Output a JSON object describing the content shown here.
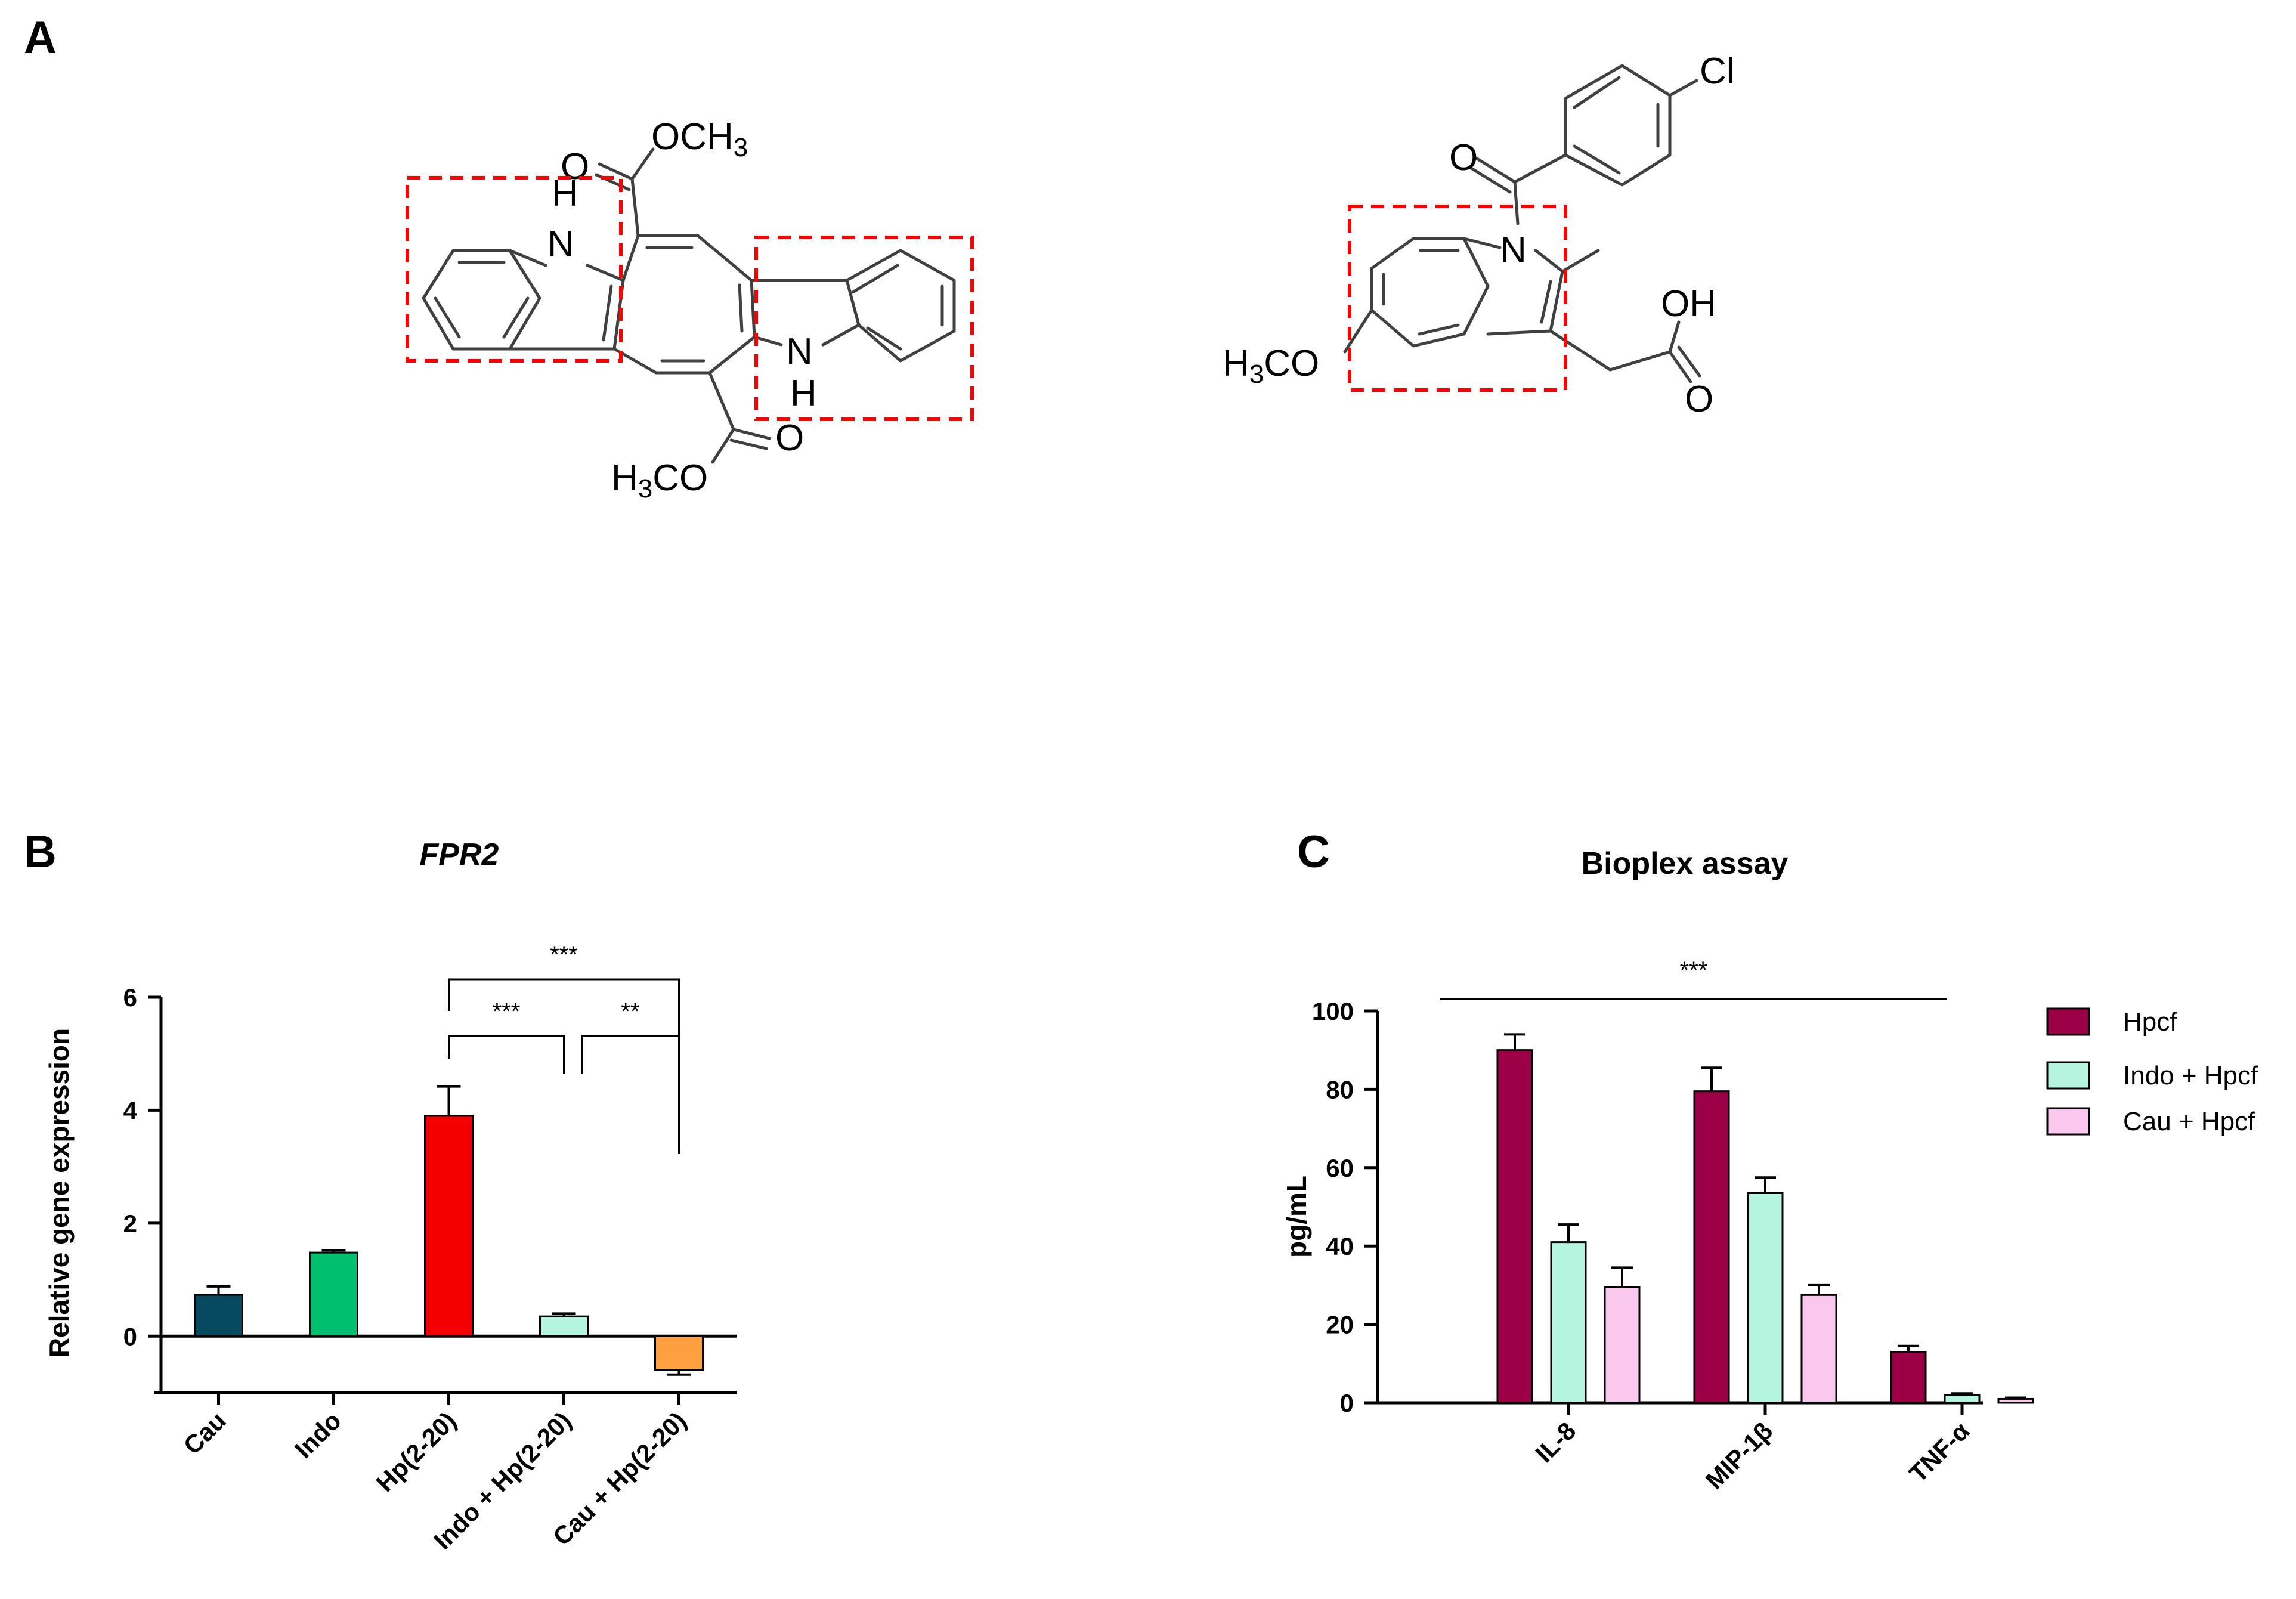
{
  "panels": {
    "a": "A",
    "b": "B",
    "c": "C"
  },
  "molecules": {
    "caulerpin": {
      "atoms": {
        "nh_top": "H",
        "nh_top_n": "N",
        "nh_bot_n": "N",
        "nh_bot": "H",
        "o_top": "O",
        "och3_top": "OCH3",
        "o_bot": "O",
        "h3co_bot": "H3CO"
      }
    },
    "indomethacin": {
      "atoms": {
        "cl": "Cl",
        "o_carbonyl": "O",
        "n": "N",
        "oh": "OH",
        "o_acid": "O",
        "h3co": "H3CO"
      }
    }
  },
  "chart_data": [
    {
      "type": "bar",
      "title": "FPR2",
      "ylabel": "Relative gene expression",
      "xlabel": "",
      "categories": [
        "Cau",
        "Indo",
        "Hp(2-20)",
        "Indo + Hp(2-20)",
        "Cau + Hp(2-20)"
      ],
      "values": [
        0.73,
        1.48,
        3.9,
        0.35,
        -0.6
      ],
      "errors": [
        0.15,
        0.04,
        0.52,
        0.05,
        0.08
      ],
      "colors": [
        "#07495e",
        "#00bf6f",
        "#f40000",
        "#b5f5df",
        "#ffa040"
      ],
      "ylim": [
        -1,
        6
      ],
      "yticks": [
        0,
        2,
        4,
        6
      ],
      "significance": [
        {
          "from": "Hp(2-20)",
          "to": "Cau + Hp(2-20)",
          "label": "***"
        },
        {
          "from": "Hp(2-20)",
          "to": "Indo + Hp(2-20)",
          "label": "***"
        },
        {
          "from": "Indo + Hp(2-20)",
          "to": "Cau + Hp(2-20)",
          "label": "**"
        }
      ]
    },
    {
      "type": "bar",
      "title": "Bioplex assay",
      "ylabel": "pg/mL",
      "xlabel": "",
      "categories": [
        "IL-8",
        "MIP-1β",
        "TNF-α"
      ],
      "series": [
        {
          "name": "Hpcf",
          "values": [
            90,
            79.5,
            13
          ],
          "errors": [
            4,
            6,
            1.5
          ],
          "color": "#9b0046"
        },
        {
          "name": "Indo + Hpcf",
          "values": [
            41,
            53.5,
            2
          ],
          "errors": [
            4.5,
            4,
            0.4
          ],
          "color": "#b5f5df"
        },
        {
          "name": "Cau + Hpcf",
          "values": [
            29.5,
            27.5,
            1
          ],
          "errors": [
            5,
            2.5,
            0.3
          ],
          "color": "#fac8ee"
        }
      ],
      "ylim": [
        0,
        100
      ],
      "yticks": [
        0,
        20,
        40,
        60,
        80,
        100
      ],
      "significance_label": "***",
      "legend_position": "right"
    }
  ]
}
